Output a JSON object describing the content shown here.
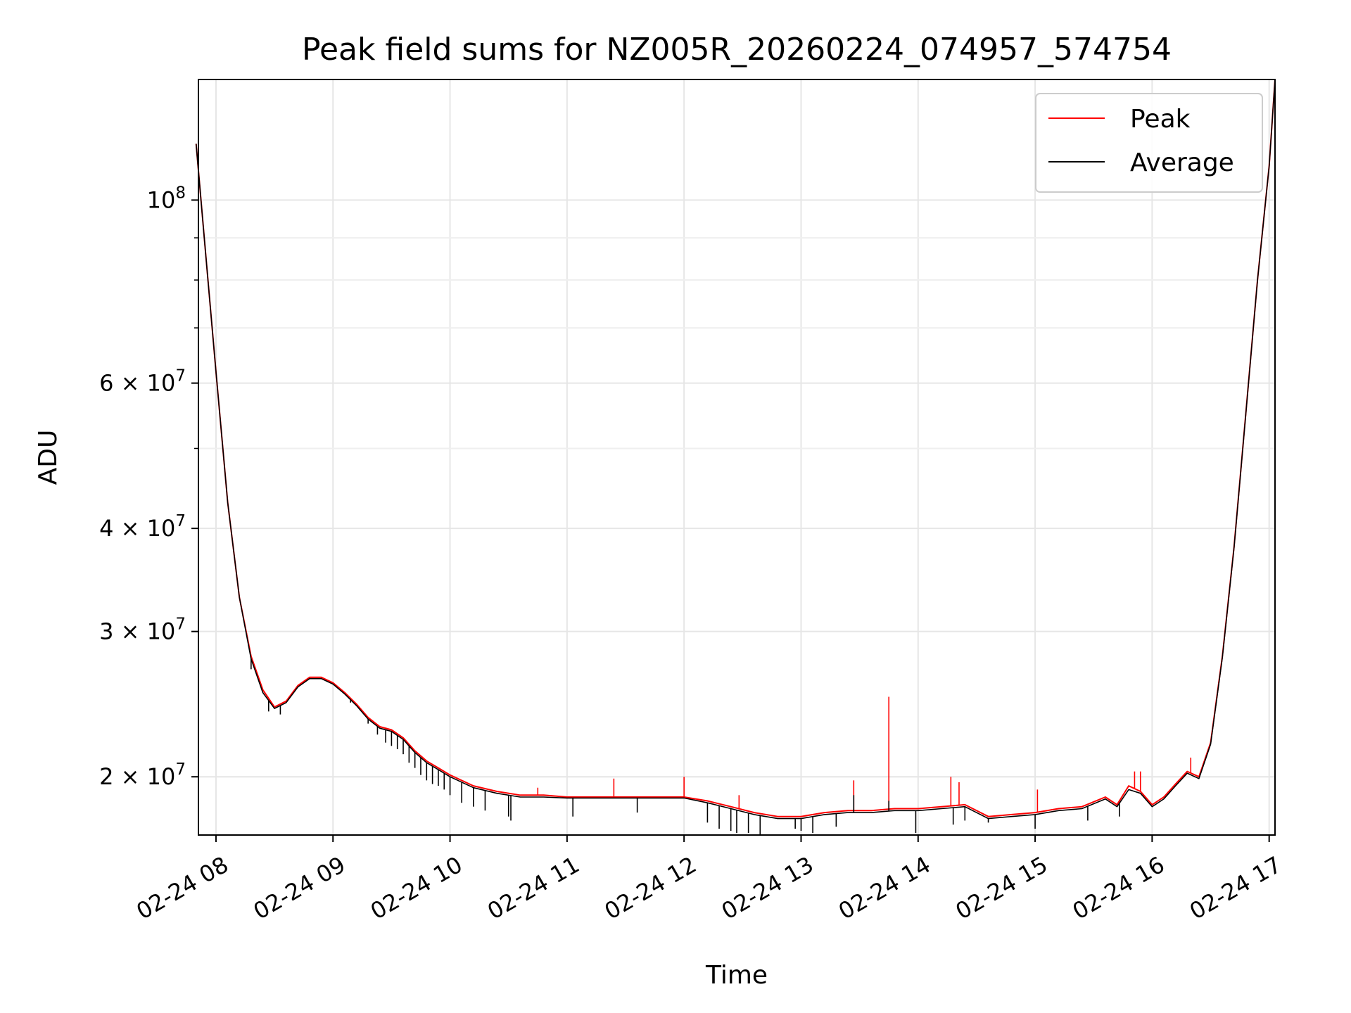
{
  "chart_data": {
    "type": "line",
    "title": "Peak field sums for NZ005R_20260224_074957_574754",
    "xlabel": "Time",
    "ylabel": "ADU",
    "yscale": "log",
    "grid": true,
    "legend_position": "top-right",
    "xlim": [
      7.85,
      17.05
    ],
    "ylim": [
      17000000,
      140000000
    ],
    "x_ticks": [
      {
        "value": 8,
        "label": "02-24 08"
      },
      {
        "value": 9,
        "label": "02-24 09"
      },
      {
        "value": 10,
        "label": "02-24 10"
      },
      {
        "value": 11,
        "label": "02-24 11"
      },
      {
        "value": 12,
        "label": "02-24 12"
      },
      {
        "value": 13,
        "label": "02-24 13"
      },
      {
        "value": 14,
        "label": "02-24 14"
      },
      {
        "value": 15,
        "label": "02-24 15"
      },
      {
        "value": 16,
        "label": "02-24 16"
      },
      {
        "value": 17,
        "label": "02-24 17"
      }
    ],
    "y_ticks": [
      {
        "value": 20000000,
        "mantissa": "2",
        "exponent": "7",
        "times": "×",
        "base": "10"
      },
      {
        "value": 30000000,
        "mantissa": "3",
        "exponent": "7",
        "times": "×",
        "base": "10"
      },
      {
        "value": 40000000,
        "mantissa": "4",
        "exponent": "7",
        "times": "×",
        "base": "10"
      },
      {
        "value": 60000000,
        "mantissa": "6",
        "exponent": "7",
        "times": "×",
        "base": "10"
      },
      {
        "value": 100000000,
        "mantissa": "",
        "exponent": "8",
        "times": "",
        "base": "10"
      }
    ],
    "y_minor_ticks": [
      50000000,
      70000000,
      80000000,
      90000000
    ],
    "series": [
      {
        "name": "Peak",
        "color": "#ff0000",
        "x": [
          7.83,
          7.9,
          8.0,
          8.1,
          8.2,
          8.3,
          8.4,
          8.5,
          8.6,
          8.7,
          8.8,
          8.9,
          9.0,
          9.1,
          9.2,
          9.3,
          9.4,
          9.5,
          9.6,
          9.7,
          9.8,
          9.9,
          10.0,
          10.2,
          10.4,
          10.6,
          10.8,
          11.0,
          11.2,
          11.4,
          11.6,
          11.8,
          12.0,
          12.2,
          12.4,
          12.6,
          12.8,
          13.0,
          13.2,
          13.4,
          13.6,
          13.8,
          14.0,
          14.2,
          14.4,
          14.6,
          14.8,
          15.0,
          15.2,
          15.4,
          15.6,
          15.7,
          15.8,
          15.9,
          16.0,
          16.1,
          16.2,
          16.3,
          16.4,
          16.5,
          16.6,
          16.7,
          16.8,
          16.9,
          17.0,
          17.05
        ],
        "y": [
          117000000,
          90000000,
          62000000,
          43000000,
          33000000,
          28000000,
          25500000,
          24300000,
          24700000,
          25800000,
          26400000,
          26400000,
          26000000,
          25300000,
          24500000,
          23600000,
          23000000,
          22800000,
          22300000,
          21500000,
          20900000,
          20500000,
          20100000,
          19500000,
          19200000,
          19000000,
          19000000,
          18900000,
          18900000,
          18900000,
          18900000,
          18900000,
          18900000,
          18700000,
          18400000,
          18100000,
          17900000,
          17900000,
          18100000,
          18200000,
          18200000,
          18300000,
          18300000,
          18400000,
          18500000,
          17900000,
          18000000,
          18100000,
          18300000,
          18400000,
          18900000,
          18500000,
          19500000,
          19200000,
          18500000,
          18900000,
          19600000,
          20300000,
          20000000,
          22000000,
          28000000,
          38000000,
          55000000,
          80000000,
          110000000,
          140000000
        ]
      },
      {
        "name": "Average",
        "color": "#000000",
        "x": [
          7.83,
          7.9,
          8.0,
          8.1,
          8.2,
          8.3,
          8.4,
          8.5,
          8.6,
          8.7,
          8.8,
          8.9,
          9.0,
          9.1,
          9.2,
          9.3,
          9.4,
          9.5,
          9.6,
          9.7,
          9.8,
          9.9,
          10.0,
          10.2,
          10.4,
          10.6,
          10.8,
          11.0,
          11.2,
          11.4,
          11.6,
          11.8,
          12.0,
          12.2,
          12.4,
          12.6,
          12.8,
          13.0,
          13.2,
          13.4,
          13.6,
          13.8,
          14.0,
          14.2,
          14.4,
          14.6,
          14.8,
          15.0,
          15.2,
          15.4,
          15.6,
          15.7,
          15.8,
          15.9,
          16.0,
          16.1,
          16.2,
          16.3,
          16.4,
          16.5,
          16.6,
          16.7,
          16.8,
          16.9,
          17.0,
          17.05
        ],
        "y": [
          117000000,
          90000000,
          62000000,
          43000000,
          33000000,
          27800000,
          25300000,
          24200000,
          24600000,
          25700000,
          26300000,
          26300000,
          25900000,
          25200000,
          24400000,
          23500000,
          22900000,
          22700000,
          22200000,
          21400000,
          20800000,
          20400000,
          20000000,
          19400000,
          19100000,
          18900000,
          18900000,
          18850000,
          18850000,
          18850000,
          18850000,
          18850000,
          18850000,
          18600000,
          18300000,
          18000000,
          17800000,
          17800000,
          18000000,
          18100000,
          18100000,
          18200000,
          18200000,
          18300000,
          18400000,
          17800000,
          17900000,
          18000000,
          18200000,
          18300000,
          18800000,
          18400000,
          19300000,
          19100000,
          18400000,
          18800000,
          19500000,
          20200000,
          19900000,
          21900000,
          27900000,
          37900000,
          54900000,
          79900000,
          109900000,
          139900000
        ]
      }
    ],
    "peak_spikes": [
      {
        "x": 13.75,
        "y": 25000000
      },
      {
        "x": 12.0,
        "y": 20000000
      },
      {
        "x": 11.4,
        "y": 19900000
      },
      {
        "x": 13.45,
        "y": 19800000
      },
      {
        "x": 14.28,
        "y": 20000000
      },
      {
        "x": 14.35,
        "y": 19700000
      },
      {
        "x": 15.85,
        "y": 20300000
      },
      {
        "x": 15.9,
        "y": 20300000
      },
      {
        "x": 16.33,
        "y": 21100000
      },
      {
        "x": 15.02,
        "y": 19300000
      },
      {
        "x": 12.47,
        "y": 19000000
      },
      {
        "x": 10.75,
        "y": 19400000
      }
    ],
    "average_dips": [
      {
        "x": 8.3,
        "y": 27000000
      },
      {
        "x": 8.45,
        "y": 24000000
      },
      {
        "x": 8.55,
        "y": 23800000
      },
      {
        "x": 9.15,
        "y": 24600000
      },
      {
        "x": 9.3,
        "y": 23200000
      },
      {
        "x": 9.38,
        "y": 22500000
      },
      {
        "x": 9.45,
        "y": 22000000
      },
      {
        "x": 9.5,
        "y": 21800000
      },
      {
        "x": 9.55,
        "y": 21600000
      },
      {
        "x": 9.6,
        "y": 21300000
      },
      {
        "x": 9.65,
        "y": 20800000
      },
      {
        "x": 9.7,
        "y": 20500000
      },
      {
        "x": 9.75,
        "y": 20100000
      },
      {
        "x": 9.8,
        "y": 19800000
      },
      {
        "x": 9.85,
        "y": 19600000
      },
      {
        "x": 9.9,
        "y": 19500000
      },
      {
        "x": 9.95,
        "y": 19300000
      },
      {
        "x": 10.0,
        "y": 19000000
      },
      {
        "x": 10.1,
        "y": 18600000
      },
      {
        "x": 10.2,
        "y": 18400000
      },
      {
        "x": 10.3,
        "y": 18200000
      },
      {
        "x": 10.5,
        "y": 17900000
      },
      {
        "x": 10.52,
        "y": 17700000
      },
      {
        "x": 11.05,
        "y": 17900000
      },
      {
        "x": 11.6,
        "y": 18100000
      },
      {
        "x": 12.2,
        "y": 17600000
      },
      {
        "x": 12.3,
        "y": 17300000
      },
      {
        "x": 12.4,
        "y": 17200000
      },
      {
        "x": 12.45,
        "y": 17100000
      },
      {
        "x": 12.55,
        "y": 17100000
      },
      {
        "x": 12.65,
        "y": 17000000
      },
      {
        "x": 12.95,
        "y": 17300000
      },
      {
        "x": 13.0,
        "y": 17200000
      },
      {
        "x": 13.1,
        "y": 17100000
      },
      {
        "x": 13.3,
        "y": 17400000
      },
      {
        "x": 13.45,
        "y": 19000000
      },
      {
        "x": 13.75,
        "y": 18700000
      },
      {
        "x": 13.98,
        "y": 17100000
      },
      {
        "x": 14.3,
        "y": 17500000
      },
      {
        "x": 14.4,
        "y": 17700000
      },
      {
        "x": 14.6,
        "y": 17600000
      },
      {
        "x": 15.0,
        "y": 17300000
      },
      {
        "x": 15.45,
        "y": 17700000
      },
      {
        "x": 15.72,
        "y": 17900000
      }
    ]
  }
}
